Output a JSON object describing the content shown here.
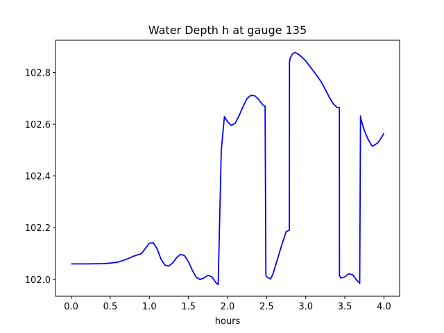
{
  "chart_data": {
    "type": "line",
    "title": "Water Depth h at gauge 135",
    "xlabel": "hours",
    "ylabel": "",
    "xlim": [
      -0.2,
      4.2
    ],
    "ylim": [
      101.935,
      102.925
    ],
    "xticks": [
      0.0,
      0.5,
      1.0,
      1.5,
      2.0,
      2.5,
      3.0,
      3.5,
      4.0
    ],
    "xtick_labels": [
      "0.0",
      "0.5",
      "1.0",
      "1.5",
      "2.0",
      "2.5",
      "3.0",
      "3.5",
      "4.0"
    ],
    "yticks": [
      102.0,
      102.2,
      102.4,
      102.6,
      102.8
    ],
    "ytick_labels": [
      "102.0",
      "102.2",
      "102.4",
      "102.6",
      "102.8"
    ],
    "grid": false,
    "line_color": "#0000ff",
    "series": [
      {
        "x": [
          0.0,
          0.2,
          0.4,
          0.5,
          0.6,
          0.7,
          0.8,
          0.9,
          0.95,
          1.0,
          1.05,
          1.1,
          1.15,
          1.2,
          1.25,
          1.3,
          1.35,
          1.4,
          1.45,
          1.5,
          1.55,
          1.6,
          1.65,
          1.7,
          1.75,
          1.8,
          1.85,
          1.88,
          1.92,
          1.96,
          1.97,
          1.98,
          2.0,
          2.05,
          2.1,
          2.15,
          2.2,
          2.25,
          2.3,
          2.35,
          2.4,
          2.45,
          2.48,
          2.49,
          2.5,
          2.55,
          2.58,
          2.62,
          2.65,
          2.7,
          2.75,
          2.79,
          2.792,
          2.8,
          2.83,
          2.86,
          2.9,
          2.95,
          3.0,
          3.05,
          3.1,
          3.15,
          3.2,
          3.25,
          3.3,
          3.35,
          3.4,
          3.43,
          3.431,
          3.45,
          3.5,
          3.55,
          3.6,
          3.65,
          3.69,
          3.7,
          3.705,
          3.75,
          3.8,
          3.85,
          3.88,
          3.92,
          3.95,
          4.0
        ],
        "y": [
          102.06,
          102.06,
          102.061,
          102.063,
          102.067,
          102.077,
          102.09,
          102.1,
          102.12,
          102.14,
          102.142,
          102.118,
          102.078,
          102.055,
          102.052,
          102.064,
          102.085,
          102.097,
          102.092,
          102.068,
          102.035,
          102.008,
          102.0,
          102.006,
          102.016,
          102.01,
          101.988,
          101.98,
          102.5,
          102.63,
          102.625,
          102.62,
          102.61,
          102.595,
          102.605,
          102.635,
          102.67,
          102.7,
          102.712,
          102.71,
          102.695,
          102.675,
          102.67,
          102.018,
          102.01,
          102.002,
          102.02,
          102.06,
          102.09,
          102.14,
          102.185,
          102.19,
          102.84,
          102.855,
          102.872,
          102.878,
          102.872,
          102.86,
          102.845,
          102.825,
          102.805,
          102.785,
          102.763,
          102.735,
          102.705,
          102.68,
          102.665,
          102.665,
          102.015,
          102.005,
          102.01,
          102.022,
          102.018,
          101.998,
          101.985,
          102.632,
          102.62,
          102.575,
          102.54,
          102.515,
          102.52,
          102.528,
          102.54,
          102.565
        ]
      }
    ]
  }
}
